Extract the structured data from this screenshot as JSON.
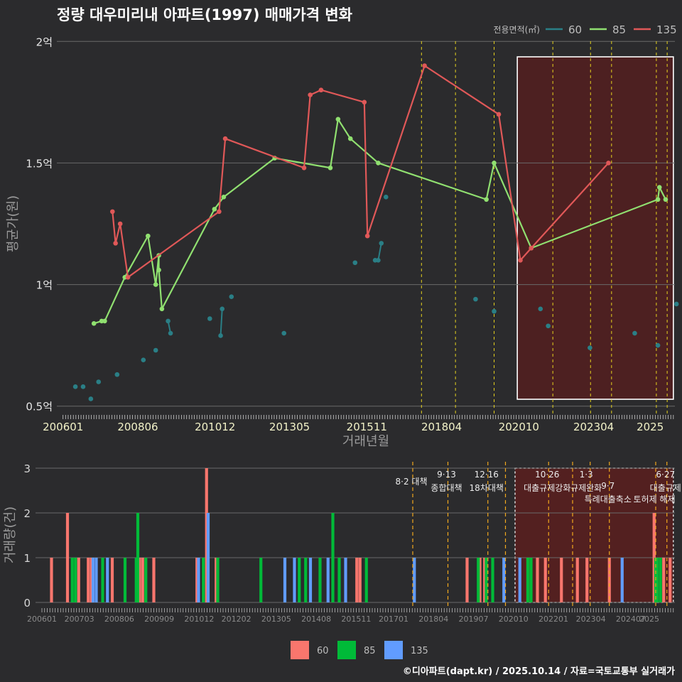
{
  "title": "정량 대우미리내 아파트(1997) 매매가격 변화",
  "credit": "©디아파트(dapt.kr) / 2025.10.14 / 자료=국토교통부 실거래가",
  "colors": {
    "bg": "#2b2b2d",
    "s60_line": "#2a7f86",
    "s85_line": "#90e070",
    "s135_line": "#e05858",
    "bar60": "#f8766d",
    "bar85": "#00ba38",
    "bar135": "#619cff",
    "vline": "#e6d21e",
    "vline_bottom": "#f2a81d",
    "highlight": "#5a1e1e"
  },
  "chart_data": [
    {
      "type": "line",
      "title": "정량 대우미리내 아파트(1997) 매매가격 변화",
      "xlabel": "거래년월",
      "ylabel": "평균가(원)",
      "ylim": [
        0.47,
        2.03
      ],
      "xlim": [
        2005.8,
        2025.8
      ],
      "x_ticks": [
        2006.0,
        2008.42,
        2010.92,
        2013.33,
        2015.83,
        2018.25,
        2020.75,
        2023.17,
        2025.0
      ],
      "x_tick_labels": [
        "200601",
        "200806",
        "201012",
        "201305",
        "201511",
        "201804",
        "202010",
        "202304",
        "2025"
      ],
      "y_ticks": [
        0.5,
        1.0,
        1.5,
        2.0
      ],
      "y_tick_labels": [
        "0.5억",
        "1억",
        "1.5억",
        "2억"
      ],
      "legend_title": "전용면적(㎡)",
      "legend_labels": [
        "60",
        "85",
        "135"
      ],
      "highlight_box": [
        2020.7,
        2025.75
      ],
      "policy_lines": [
        2017.6,
        2018.7,
        2019.95,
        2021.85,
        2023.07,
        2023.75,
        2025.2,
        2025.55
      ],
      "series": [
        {
          "name": "60",
          "points": [
            [
              2006.4,
              0.58
            ],
            [
              2006.65,
              0.58
            ],
            [
              2006.9,
              0.53
            ],
            [
              2007.15,
              0.6
            ],
            [
              2007.75,
              0.63
            ],
            [
              2008.6,
              0.69
            ],
            [
              2009.0,
              0.73
            ],
            [
              2009.4,
              0.85
            ],
            [
              2009.48,
              0.8
            ],
            [
              2010.75,
              0.86
            ],
            [
              2011.1,
              0.79
            ],
            [
              2011.15,
              0.9
            ],
            [
              2011.45,
              0.95
            ],
            [
              2013.15,
              0.8
            ],
            [
              2015.45,
              1.09
            ],
            [
              2016.1,
              1.1
            ],
            [
              2016.2,
              1.1
            ],
            [
              2016.3,
              1.17
            ],
            [
              2016.45,
              1.36
            ],
            [
              2019.35,
              0.94
            ],
            [
              2019.95,
              0.89
            ],
            [
              2021.45,
              0.9
            ],
            [
              2021.7,
              0.83
            ],
            [
              2023.05,
              0.74
            ],
            [
              2024.5,
              0.8
            ],
            [
              2025.25,
              0.75
            ],
            [
              2025.85,
              0.92
            ]
          ],
          "lines": [
            [
              [
                2009.4,
                0.85
              ],
              [
                2009.48,
                0.8
              ]
            ],
            [
              [
                2011.1,
                0.79
              ],
              [
                2011.15,
                0.9
              ]
            ],
            [
              [
                2016.1,
                1.1
              ],
              [
                2016.2,
                1.1
              ]
            ],
            [
              [
                2016.2,
                1.1
              ],
              [
                2016.3,
                1.17
              ]
            ]
          ]
        },
        {
          "name": "85",
          "points": [
            [
              2007.0,
              0.84
            ],
            [
              2007.25,
              0.85
            ],
            [
              2007.35,
              0.85
            ],
            [
              2008.0,
              1.03
            ],
            [
              2008.75,
              1.2
            ],
            [
              2009.0,
              1.0
            ],
            [
              2009.1,
              1.12
            ],
            [
              2009.1,
              1.06
            ],
            [
              2009.2,
              0.9
            ],
            [
              2010.9,
              1.31
            ],
            [
              2011.2,
              1.36
            ],
            [
              2012.85,
              1.52
            ],
            [
              2014.65,
              1.48
            ],
            [
              2014.9,
              1.68
            ],
            [
              2015.3,
              1.6
            ],
            [
              2016.2,
              1.5
            ],
            [
              2019.7,
              1.35
            ],
            [
              2019.95,
              1.5
            ],
            [
              2021.15,
              1.15
            ],
            [
              2025.25,
              1.35
            ],
            [
              2025.3,
              1.4
            ],
            [
              2025.5,
              1.35
            ]
          ]
        },
        {
          "name": "135",
          "points": [
            [
              2007.6,
              1.3
            ],
            [
              2007.7,
              1.17
            ],
            [
              2007.85,
              1.25
            ],
            [
              2008.1,
              1.03
            ],
            [
              2011.05,
              1.3
            ],
            [
              2011.25,
              1.6
            ],
            [
              2013.8,
              1.48
            ],
            [
              2014.0,
              1.78
            ],
            [
              2014.35,
              1.8
            ],
            [
              2015.75,
              1.75
            ],
            [
              2015.85,
              1.2
            ],
            [
              2017.7,
              1.9
            ],
            [
              2020.1,
              1.7
            ],
            [
              2020.8,
              1.1
            ],
            [
              2021.15,
              1.15
            ],
            [
              2023.65,
              1.5
            ]
          ]
        }
      ]
    },
    {
      "type": "bar",
      "ylabel": "거래량(건)",
      "ylim": [
        0,
        3
      ],
      "y_ticks": [
        0,
        1,
        2,
        3
      ],
      "xlim": [
        2005.8,
        2025.8
      ],
      "x_ticks": [
        2006.0,
        2007.17,
        2008.42,
        2009.67,
        2010.92,
        2012.08,
        2013.33,
        2014.58,
        2015.83,
        2017.0,
        2018.25,
        2019.5,
        2020.75,
        2022.0,
        2023.17,
        2024.42,
        2025.0
      ],
      "x_tick_labels": [
        "200601",
        "200703",
        "200806",
        "200909",
        "201012",
        "201202",
        "201305",
        "201408",
        "201511",
        "201701",
        "201804",
        "201907",
        "202010",
        "202201",
        "202304",
        "202407",
        "2025"
      ],
      "highlight_box": [
        2020.8,
        2025.75
      ],
      "policy_lines": [
        2017.6,
        2018.7,
        2019.95,
        2020.5,
        2021.85,
        2022.6,
        2023.15,
        2023.75,
        2025.2,
        2025.55
      ],
      "annotations": [
        {
          "x": 2017.6,
          "lines": [
            "8·2 대책"
          ],
          "row": 0
        },
        {
          "x": 2018.7,
          "lines": [
            "9·13",
            "종합대책"
          ],
          "row": 0
        },
        {
          "x": 2019.95,
          "lines": [
            "12·16",
            "18차대책"
          ],
          "row": 0
        },
        {
          "x": 2021.85,
          "lines": [
            "10·26",
            "대출규제강화"
          ],
          "row": 0
        },
        {
          "x": 2023.07,
          "lines": [
            "1·3",
            "규제완화"
          ],
          "row": 0
        },
        {
          "x": 2023.75,
          "lines": [
            "9·7",
            "특례대출축소"
          ],
          "row": 1
        },
        {
          "x": 2025.2,
          "lines": [
            "토허제 해제"
          ],
          "row": 1
        },
        {
          "x": 2025.55,
          "lines": [
            "6·27",
            "대출규제"
          ],
          "row": 0
        }
      ],
      "series": [
        {
          "name": "60",
          "bars": [
            [
              2006.3,
              1
            ],
            [
              2006.8,
              2
            ],
            [
              2007.15,
              1
            ],
            [
              2007.45,
              1
            ],
            [
              2007.55,
              1
            ],
            [
              2008.2,
              1
            ],
            [
              2009.05,
              1
            ],
            [
              2009.15,
              1
            ],
            [
              2009.5,
              1
            ],
            [
              2010.85,
              1
            ],
            [
              2011.15,
              3
            ],
            [
              2011.45,
              1
            ],
            [
              2015.85,
              1
            ],
            [
              2015.95,
              1
            ],
            [
              2019.3,
              1
            ],
            [
              2019.7,
              1
            ],
            [
              2019.85,
              1
            ],
            [
              2021.2,
              1
            ],
            [
              2021.5,
              1
            ],
            [
              2021.75,
              1
            ],
            [
              2022.25,
              1
            ],
            [
              2022.75,
              1
            ],
            [
              2023.05,
              1
            ],
            [
              2023.75,
              1
            ],
            [
              2025.15,
              2
            ],
            [
              2025.45,
              1
            ],
            [
              2025.65,
              1
            ]
          ]
        },
        {
          "name": "85",
          "bars": [
            [
              2006.95,
              1
            ],
            [
              2007.05,
              1
            ],
            [
              2007.9,
              1
            ],
            [
              2008.6,
              1
            ],
            [
              2008.95,
              1
            ],
            [
              2009.0,
              2
            ],
            [
              2009.25,
              1
            ],
            [
              2011.05,
              1
            ],
            [
              2011.5,
              1
            ],
            [
              2012.85,
              1
            ],
            [
              2014.05,
              1
            ],
            [
              2014.25,
              1
            ],
            [
              2014.7,
              1
            ],
            [
              2015.1,
              2
            ],
            [
              2015.3,
              1
            ],
            [
              2016.15,
              1
            ],
            [
              2019.65,
              1
            ],
            [
              2019.9,
              1
            ],
            [
              2020.1,
              1
            ],
            [
              2021.2,
              1
            ],
            [
              2021.3,
              1
            ],
            [
              2025.2,
              1
            ],
            [
              2025.25,
              1
            ],
            [
              2025.35,
              1
            ]
          ]
        },
        {
          "name": "135",
          "bars": [
            [
              2007.6,
              1
            ],
            [
              2007.7,
              1
            ],
            [
              2008.05,
              1
            ],
            [
              2010.9,
              1
            ],
            [
              2011.2,
              2
            ],
            [
              2013.6,
              1
            ],
            [
              2013.9,
              1
            ],
            [
              2014.4,
              1
            ],
            [
              2014.95,
              1
            ],
            [
              2015.5,
              1
            ],
            [
              2017.65,
              1
            ],
            [
              2020.45,
              1
            ],
            [
              2020.95,
              1
            ],
            [
              2024.15,
              1
            ]
          ]
        }
      ]
    }
  ]
}
